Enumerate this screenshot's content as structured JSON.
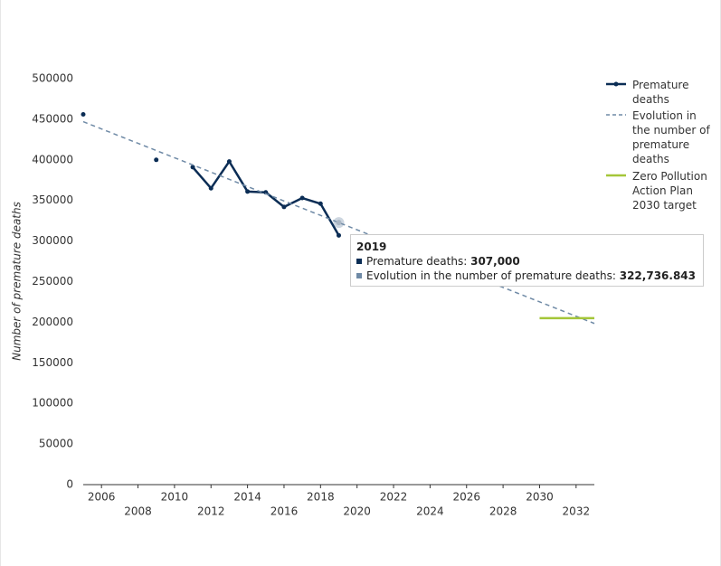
{
  "chart_data": {
    "type": "line",
    "y_label": "Number of premature deaths",
    "xlim": [
      2005,
      2033
    ],
    "xticks": [
      2006,
      2008,
      2010,
      2012,
      2014,
      2016,
      2018,
      2020,
      2022,
      2024,
      2026,
      2028,
      2030,
      2032
    ],
    "ylim": [
      0,
      500000
    ],
    "yticks": [
      0,
      50000,
      100000,
      150000,
      200000,
      250000,
      300000,
      350000,
      400000,
      450000,
      500000
    ],
    "grid": false,
    "legend": "right",
    "series": [
      {
        "name": "Premature deaths",
        "color": "#0b2d55",
        "style": "solid",
        "markers": true,
        "x": [
          2005,
          2006,
          2007,
          2008,
          2009,
          2010,
          2011,
          2012,
          2013,
          2014,
          2015,
          2016,
          2017,
          2018,
          2019
        ],
        "values": [
          456000,
          null,
          null,
          null,
          400000,
          null,
          391000,
          365000,
          398000,
          361000,
          360000,
          342000,
          353000,
          346000,
          307000
        ]
      },
      {
        "name": "Evolution in the number of premature deaths",
        "color": "#6f8aa6",
        "style": "dashed",
        "markers": false,
        "x": [
          2005,
          2019,
          2033
        ],
        "values": [
          447000,
          322736.843,
          198500
        ]
      },
      {
        "name": "Zero Pollution Action Plan 2030 target",
        "color": "#a4c639",
        "style": "solid",
        "markers": false,
        "x": [
          2030,
          2033
        ],
        "values": [
          205000,
          205000
        ]
      }
    ],
    "tooltip": {
      "title": "2019",
      "items": [
        {
          "label": "Premature deaths:",
          "value": "307,000",
          "color": "#0b2d55"
        },
        {
          "label": "Evolution in the number of premature deaths:",
          "value": "322,736.843",
          "color": "#6f8aa6"
        }
      ]
    }
  }
}
